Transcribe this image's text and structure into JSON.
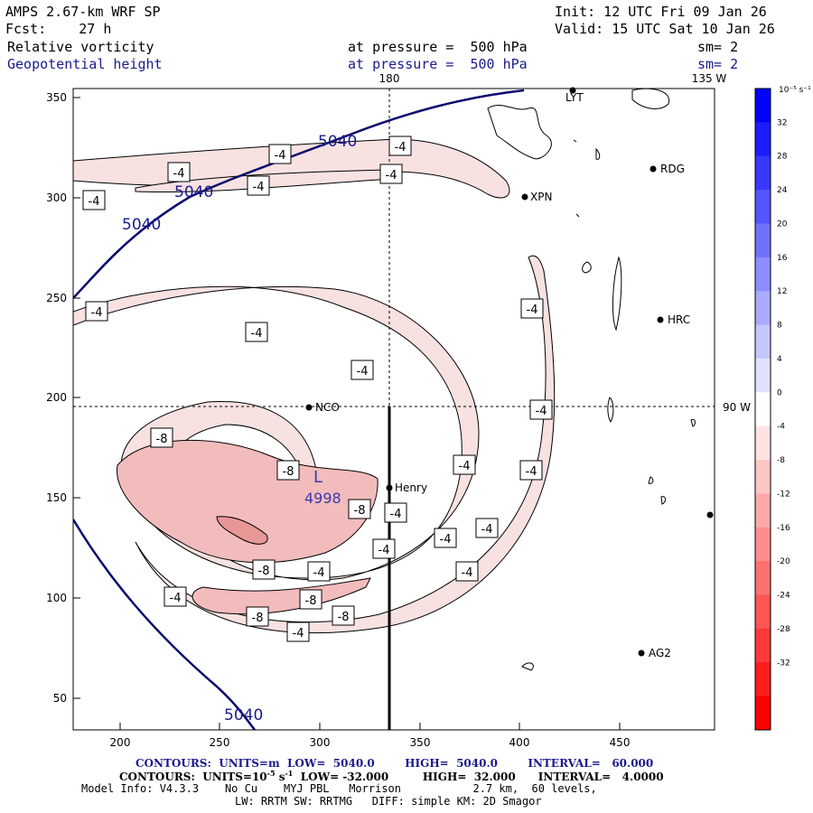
{
  "header": {
    "model": "AMPS 2.67-km WRF SP",
    "init": "Init: 12 UTC Fri 09 Jan 26",
    "fcst": "Fcst:    27 h",
    "valid": "Valid: 15 UTC Sat 10 Jan 26",
    "field1_name": "Relative vorticity",
    "field1_level": "at pressure =  500 hPa",
    "field1_sm": "sm= 2",
    "field2_name": "Geopotential height",
    "field2_level": "at pressure =  500 hPa",
    "field2_sm": "sm= 2"
  },
  "map": {
    "meridian_labels": {
      "top_180": "180",
      "top_135w": "135 W",
      "right_90w": "90 W"
    },
    "x_ticks": [
      "200",
      "250",
      "300",
      "350",
      "400",
      "450"
    ],
    "y_ticks": [
      "350",
      "300",
      "250",
      "200",
      "150",
      "100",
      "50"
    ],
    "stations": [
      {
        "name": "LYT"
      },
      {
        "name": "RDG"
      },
      {
        "name": "XPN"
      },
      {
        "name": "HRC"
      },
      {
        "name": "NCO"
      },
      {
        "name": "Henry"
      },
      {
        "name": "AG2"
      }
    ],
    "low_center": {
      "letter": "L",
      "value": "4998"
    },
    "height_labels": [
      "5040",
      "5040",
      "5040",
      "5040"
    ],
    "vort_labels": [
      "-4",
      "-8"
    ],
    "colors": {
      "height_contour": "#0a0a6e",
      "vort_light": "#f7e1e1",
      "vort_mid": "#f2bcbc",
      "vort_dark": "#e89797"
    }
  },
  "colorbar": {
    "unit_label": "10⁻⁵ s⁻¹",
    "labels": [
      "32",
      "28",
      "24",
      "20",
      "16",
      "12",
      "8",
      "4",
      "0",
      "-4",
      "-8",
      "-12",
      "-16",
      "-20",
      "-24",
      "-28",
      "-32"
    ],
    "colors": [
      "#0000ff",
      "#1c1cff",
      "#3838ff",
      "#5555ff",
      "#7171ff",
      "#8d8dff",
      "#aaaaff",
      "#c6c6ff",
      "#e2e2ff",
      "#ffffff",
      "#ffe2e2",
      "#ffc6c6",
      "#ffaaaa",
      "#ff8d8d",
      "#ff7171",
      "#ff5555",
      "#ff3838",
      "#ff1c1c",
      "#ff0000"
    ]
  },
  "footer": {
    "line1": "CONTOURS:  UNITS=m  LOW=  5040.0        HIGH=  5040.0        INTERVAL=   60.000",
    "line2_a": "CONTOURS:  UNITS=10",
    "line2_b": "-5",
    "line2_c": " s",
    "line2_d": "-1",
    "line2_e": "  LOW= -32.000         HIGH=  32.000      INTERVAL=   4.0000",
    "line3": "Model Info: V4.3.3    No Cu    MYJ PBL   Morrison           2.7 km,  60 levels,",
    "line4": "LW: RRTM SW: RRTMG   DIFF: simple KM: 2D Smagor"
  }
}
